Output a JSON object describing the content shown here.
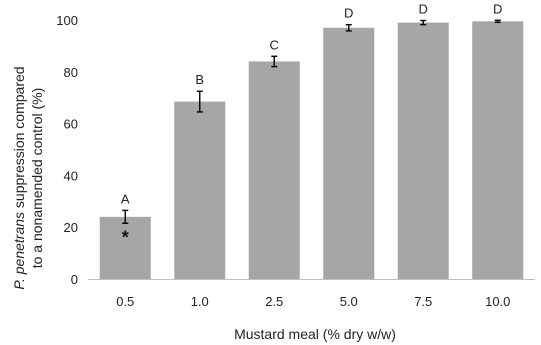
{
  "chart_data": {
    "type": "bar",
    "categories": [
      "0.5",
      "1.0",
      "2.5",
      "5.0",
      "7.5",
      "10.0"
    ],
    "values": [
      24,
      68.5,
      84,
      97,
      99,
      99.5
    ],
    "error": [
      2.5,
      4,
      2,
      1.2,
      0.8,
      0.4
    ],
    "significance_letters": [
      "A",
      "B",
      "C",
      "D",
      "D",
      "D"
    ],
    "annotations": [
      {
        "category": "0.5",
        "text": "*"
      }
    ],
    "xlabel": "Mustard meal (% dry w/w)",
    "ylabel_italic": "P. penetrans",
    "ylabel_rest": " suppression compared",
    "ylabel_line2": "to a nonamended control (%)",
    "ylim": [
      0,
      100
    ],
    "yticks": [
      "0",
      "20",
      "40",
      "60",
      "80",
      "100"
    ],
    "grid": false,
    "bar_color": "#a6a6a6"
  }
}
